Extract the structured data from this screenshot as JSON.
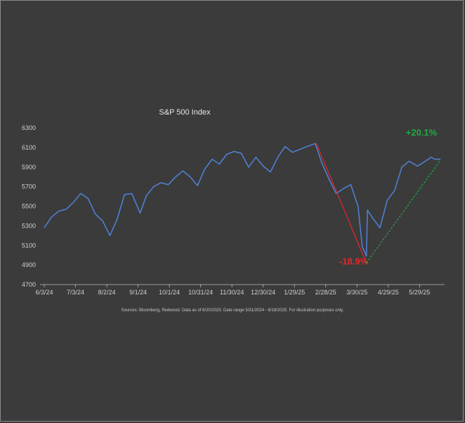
{
  "chart_data": {
    "type": "line",
    "title": "S&P 500 Index",
    "xlabel": "",
    "ylabel": "",
    "ylim": [
      4700,
      6300
    ],
    "yticks": [
      4700,
      4900,
      5100,
      5300,
      5500,
      5700,
      5900,
      6100,
      6300
    ],
    "xticks": [
      "6/3/24",
      "7/3/24",
      "8/2/24",
      "9/1/24",
      "10/1/24",
      "10/31/24",
      "11/30/24",
      "12/30/24",
      "1/29/25",
      "2/28/25",
      "3/30/25",
      "4/29/25",
      "5/29/25"
    ],
    "grid": false,
    "legend": "none",
    "series": [
      {
        "color": "#4f7fcf",
        "x": [
          "6/3/24",
          "6/10/24",
          "6/17/24",
          "6/24/24",
          "7/1/24",
          "7/8/24",
          "7/15/24",
          "7/22/24",
          "7/29/24",
          "8/5/24",
          "8/12/24",
          "8/19/24",
          "8/26/24",
          "9/3/24",
          "9/9/24",
          "9/16/24",
          "9/23/24",
          "9/30/24",
          "10/7/24",
          "10/14/24",
          "10/21/24",
          "10/28/24",
          "11/4/24",
          "11/11/24",
          "11/18/24",
          "11/25/24",
          "12/2/24",
          "12/9/24",
          "12/16/24",
          "12/23/24",
          "12/30/24",
          "1/6/25",
          "1/13/25",
          "1/20/25",
          "1/27/25",
          "2/3/25",
          "2/10/25",
          "2/18/25",
          "2/24/25",
          "3/3/25",
          "3/10/25",
          "3/17/25",
          "3/24/25",
          "3/31/25",
          "4/4/25",
          "4/8/25",
          "4/9/25",
          "4/14/25",
          "4/21/25",
          "4/28/25",
          "5/5/25",
          "5/12/25",
          "5/19/25",
          "5/27/25",
          "6/2/25",
          "6/9/25",
          "6/13/25",
          "6/18/25"
        ],
        "values": [
          5280,
          5390,
          5450,
          5470,
          5540,
          5630,
          5580,
          5420,
          5350,
          5200,
          5370,
          5620,
          5630,
          5430,
          5610,
          5700,
          5740,
          5720,
          5800,
          5860,
          5800,
          5710,
          5880,
          5980,
          5930,
          6030,
          6060,
          6040,
          5900,
          6000,
          5910,
          5850,
          6000,
          6110,
          6050,
          6080,
          6110,
          6140,
          5950,
          5780,
          5630,
          5680,
          5720,
          5500,
          5090,
          4990,
          5460,
          5380,
          5280,
          5560,
          5660,
          5900,
          5960,
          5910,
          5950,
          6000,
          5980,
          5980
        ]
      }
    ],
    "annotations": [
      {
        "label": "-18.9%",
        "color": "#e8262c",
        "from": [
          "2/19/25",
          6140
        ],
        "to": [
          "4/8/25",
          4920
        ]
      },
      {
        "label": "+20.1%",
        "color": "#21a845",
        "from": [
          "4/8/25",
          4920
        ],
        "to": [
          "6/18/25",
          5970
        ]
      }
    ]
  },
  "footnote": "Sources: Bloomberg, Redwood. Data as of 6/20/2025. Date range 5/31/2024 - 6/18/2025. For illustration purposes only."
}
